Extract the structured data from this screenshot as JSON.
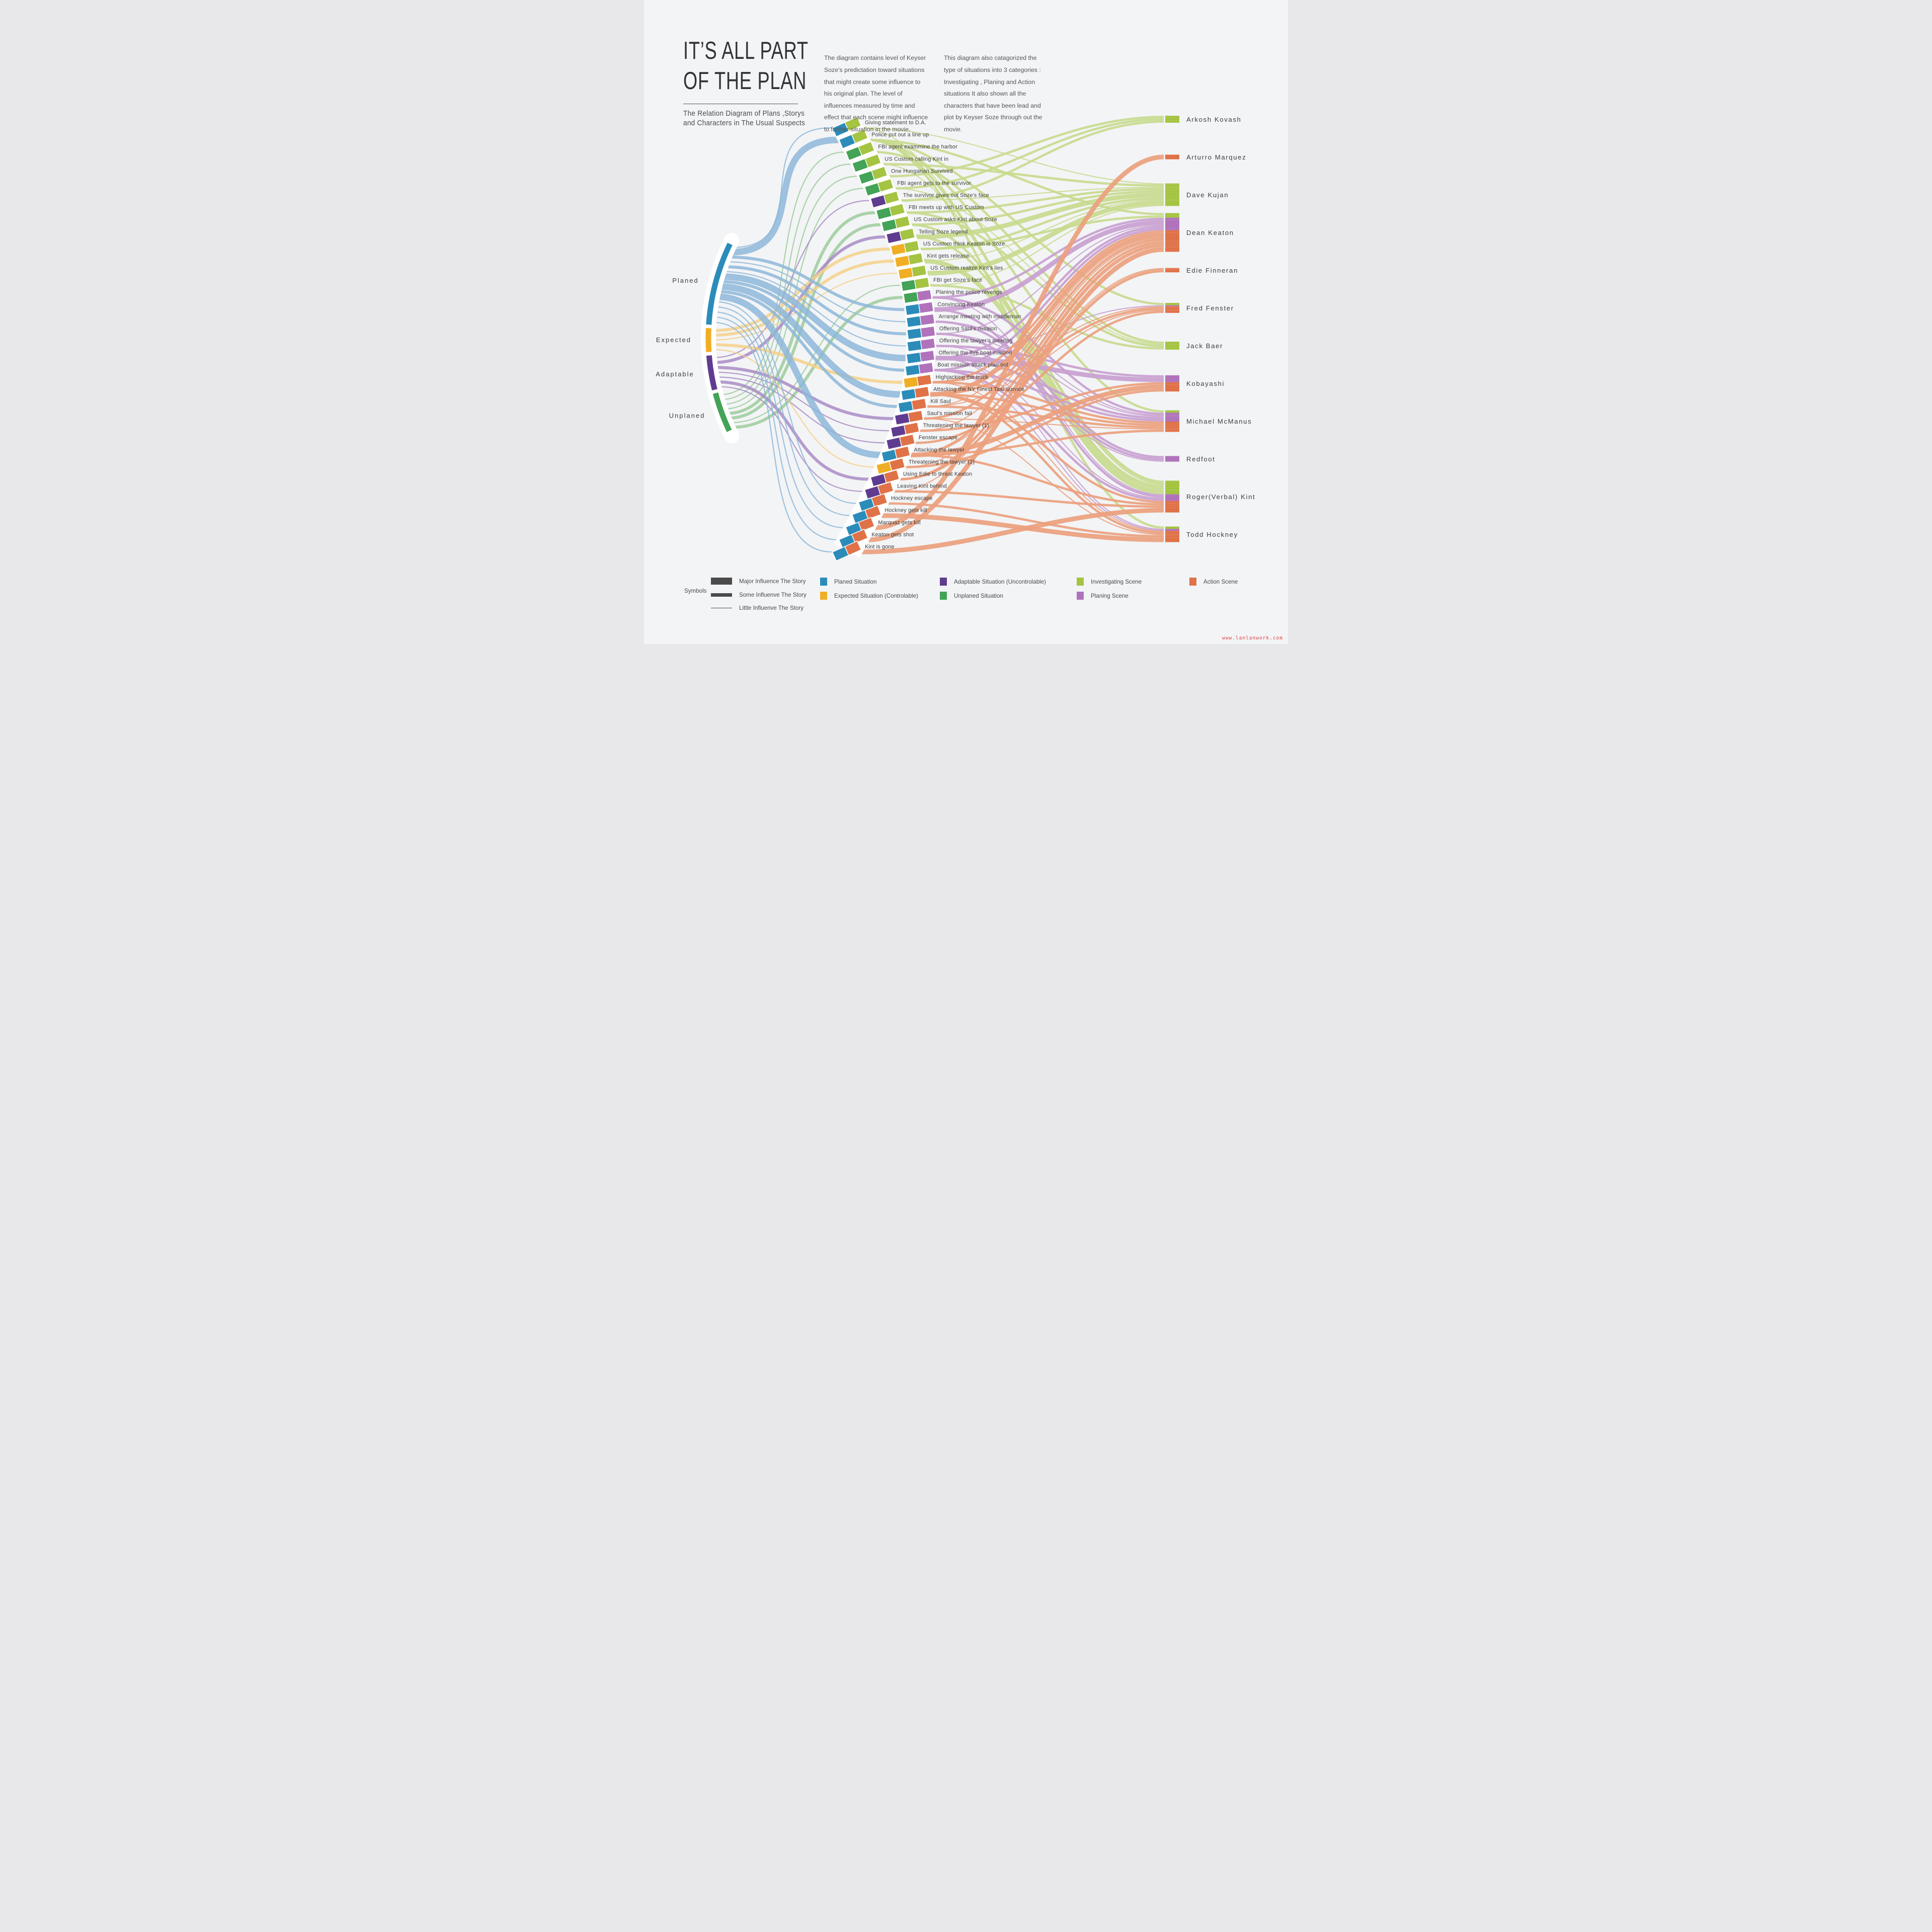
{
  "title": {
    "line1": "IT’S ALL PART",
    "line2": "OF THE PLAN",
    "subtitle_line1": "The Relation Diagram of Plans ,Storys",
    "subtitle_line2": "and Characters in The Usual Suspects"
  },
  "intro": {
    "para1": "The diagram contains level of Keyser Soze’s predictation toward situations that might create some influence to his original plan. The level of influences measured by time and effect that each scene might influence to further situation in the movie.",
    "para2": "This diagram also catagorized the type of situations into 3 categories : Investigating , Planing and Action situations It also shown all the characters that have been lead and plot by Keyser Soze through out the movie."
  },
  "colors": {
    "background": "#f3f4f6",
    "text": "#3d3d3d",
    "influence_bar": "#4b4b4b",
    "watermark_color": "#e04040",
    "planed": {
      "node": "#2b8cba",
      "flow": "#8db7d9"
    },
    "expected": {
      "node": "#f0ae24",
      "flow": "#f5d188"
    },
    "adaptable": {
      "node": "#5f3c90",
      "flow": "#a98bc5"
    },
    "unplaned": {
      "node": "#43a356",
      "flow": "#9ccb9b"
    },
    "investigating": {
      "node": "#a4c442",
      "flow": "#c8da8e"
    },
    "planing": {
      "node": "#b073bb",
      "flow": "#c9a0d0"
    },
    "action": {
      "node": "#e07248",
      "flow": "#eb9f7d"
    }
  },
  "situations": [
    {
      "id": "planed",
      "label": "Planed"
    },
    {
      "id": "expected",
      "label": "Expected"
    },
    {
      "id": "adaptable",
      "label": "Adaptable"
    },
    {
      "id": "unplaned",
      "label": "Unplaned"
    }
  ],
  "characters": [
    "Arkosh Kovash",
    "Arturro Marquez",
    "Dave Kujan",
    "Dean Keaton",
    "Edie Finneran",
    "Fred Fenster",
    "Jack Baer",
    "Kobayashi",
    "Michael McManus",
    "Redfoot",
    "Roger(Verbal) Kint",
    "Todd Hockney"
  ],
  "scenes": [
    {
      "label": "Giving statement to D.A.",
      "situation": "planed",
      "type": "investigating",
      "targets": [
        {
          "c": "Dave Kujan",
          "w": 1
        },
        {
          "c": "Roger(Verbal) Kint",
          "w": 1
        }
      ]
    },
    {
      "label": "Police put out a line up",
      "situation": "planed",
      "type": "investigating",
      "targets": [
        {
          "c": "Dean Keaton",
          "w": 2
        },
        {
          "c": "Fred Fenster",
          "w": 2
        },
        {
          "c": "Michael McManus",
          "w": 2
        },
        {
          "c": "Roger(Verbal) Kint",
          "w": 2
        },
        {
          "c": "Todd Hockney",
          "w": 2
        }
      ]
    },
    {
      "label": "FBI agent exammine the harbor",
      "situation": "unplaned",
      "type": "investigating",
      "targets": [
        {
          "c": "Jack Baer",
          "w": 2
        }
      ]
    },
    {
      "label": "US Custom calling Kint in",
      "situation": "unplaned",
      "type": "investigating",
      "targets": [
        {
          "c": "Dave Kujan",
          "w": 2
        },
        {
          "c": "Roger(Verbal) Kint",
          "w": 1
        }
      ]
    },
    {
      "label": "One Hungarian Survived",
      "situation": "unplaned",
      "type": "investigating",
      "targets": [
        {
          "c": "Arkosh Kovash",
          "w": 2
        }
      ]
    },
    {
      "label": "FBI agent gets to the survivor",
      "situation": "unplaned",
      "type": "investigating",
      "targets": [
        {
          "c": "Arkosh Kovash",
          "w": 2
        },
        {
          "c": "Jack Baer",
          "w": 1
        }
      ]
    },
    {
      "label": "The survivor gives out Soze’s face",
      "situation": "adaptable",
      "type": "investigating",
      "targets": [
        {
          "c": "Arkosh Kovash",
          "w": 2
        },
        {
          "c": "Dave Kujan",
          "w": 1
        }
      ]
    },
    {
      "label": "FBI meets up with US Custom",
      "situation": "unplaned",
      "type": "investigating",
      "targets": [
        {
          "c": "Dave Kujan",
          "w": 2
        },
        {
          "c": "Jack Baer",
          "w": 2
        }
      ]
    },
    {
      "label": "US Custom asks Kint about Soze",
      "situation": "unplaned",
      "type": "investigating",
      "targets": [
        {
          "c": "Dave Kujan",
          "w": 2
        },
        {
          "c": "Roger(Verbal) Kint",
          "w": 2
        }
      ]
    },
    {
      "label": "Telling Soze legend",
      "situation": "adaptable",
      "type": "investigating",
      "targets": [
        {
          "c": "Dave Kujan",
          "w": 3
        },
        {
          "c": "Roger(Verbal) Kint",
          "w": 2
        }
      ]
    },
    {
      "label": "US Custom think Keaton is Soze",
      "situation": "expected",
      "type": "investigating",
      "targets": [
        {
          "c": "Dave Kujan",
          "w": 2
        },
        {
          "c": "Dean Keaton",
          "w": 2
        }
      ]
    },
    {
      "label": "Kint gets release",
      "situation": "expected",
      "type": "investigating",
      "targets": [
        {
          "c": "Roger(Verbal) Kint",
          "w": 3
        },
        {
          "c": "Dave Kujan",
          "w": 1
        }
      ]
    },
    {
      "label": "US Custom realize Kint’s lies",
      "situation": "expected",
      "type": "investigating",
      "targets": [
        {
          "c": "Dave Kujan",
          "w": 3
        }
      ]
    },
    {
      "label": "FBI get Soze’s face",
      "situation": "unplaned",
      "type": "investigating",
      "targets": [
        {
          "c": "Jack Baer",
          "w": 2
        },
        {
          "c": "Dave Kujan",
          "w": 1
        }
      ]
    },
    {
      "label": "Planing the police revenge",
      "situation": "unplaned",
      "type": "planing",
      "targets": [
        {
          "c": "Dean Keaton",
          "w": 2
        },
        {
          "c": "Michael McManus",
          "w": 2
        },
        {
          "c": "Roger(Verbal) Kint",
          "w": 1
        }
      ]
    },
    {
      "label": "Convincing Keaton",
      "situation": "planed",
      "type": "planing",
      "targets": [
        {
          "c": "Dean Keaton",
          "w": 3
        },
        {
          "c": "Roger(Verbal) Kint",
          "w": 2
        }
      ]
    },
    {
      "label": "Arrange meeting with middleman",
      "situation": "planed",
      "type": "planing",
      "targets": [
        {
          "c": "Redfoot",
          "w": 2
        },
        {
          "c": "Michael McManus",
          "w": 1
        }
      ]
    },
    {
      "label": "Offering Saul’s mission",
      "situation": "planed",
      "type": "planing",
      "targets": [
        {
          "c": "Redfoot",
          "w": 2
        },
        {
          "c": "Dean Keaton",
          "w": 1
        },
        {
          "c": "Michael McManus",
          "w": 1
        }
      ]
    },
    {
      "label": "Offering the lawyer’s meeting",
      "situation": "planed",
      "type": "planing",
      "targets": [
        {
          "c": "Kobayashi",
          "w": 2
        },
        {
          "c": "Redfoot",
          "w": 1
        }
      ]
    },
    {
      "label": "Offering the five boat mission",
      "situation": "planed",
      "type": "planing",
      "targets": [
        {
          "c": "Kobayashi",
          "w": 3
        },
        {
          "c": "Dean Keaton",
          "w": 2
        },
        {
          "c": "Michael McManus",
          "w": 2
        },
        {
          "c": "Fred Fenster",
          "w": 1
        },
        {
          "c": "Todd Hockney",
          "w": 1
        },
        {
          "c": "Roger(Verbal) Kint",
          "w": 1
        }
      ]
    },
    {
      "label": "Boat mission attack plan out",
      "situation": "planed",
      "type": "planing",
      "targets": [
        {
          "c": "Dean Keaton",
          "w": 2
        },
        {
          "c": "Michael McManus",
          "w": 2
        },
        {
          "c": "Roger(Verbal) Kint",
          "w": 2
        },
        {
          "c": "Todd Hockney",
          "w": 1
        }
      ]
    },
    {
      "label": "Highjacking the truck",
      "situation": "expected",
      "type": "action",
      "targets": [
        {
          "c": "Dean Keaton",
          "w": 2
        },
        {
          "c": "Michael McManus",
          "w": 2
        },
        {
          "c": "Fred Fenster",
          "w": 1
        },
        {
          "c": "Todd Hockney",
          "w": 1
        }
      ]
    },
    {
      "label": "Attacking the NY Finest Taxi Survice",
      "situation": "planed",
      "type": "action",
      "targets": [
        {
          "c": "Dean Keaton",
          "w": 3
        },
        {
          "c": "Michael McManus",
          "w": 2
        },
        {
          "c": "Fred Fenster",
          "w": 2
        },
        {
          "c": "Todd Hockney",
          "w": 2
        },
        {
          "c": "Roger(Verbal) Kint",
          "w": 2
        }
      ]
    },
    {
      "label": "Kill Saul",
      "situation": "planed",
      "type": "action",
      "targets": [
        {
          "c": "Michael McManus",
          "w": 2
        },
        {
          "c": "Fred Fenster",
          "w": 1
        },
        {
          "c": "Dean Keaton",
          "w": 1
        }
      ]
    },
    {
      "label": "Saul’s mission fail",
      "situation": "adaptable",
      "type": "action",
      "targets": [
        {
          "c": "Dean Keaton",
          "w": 2
        },
        {
          "c": "Michael McManus",
          "w": 1
        },
        {
          "c": "Todd Hockney",
          "w": 1
        }
      ]
    },
    {
      "label": "Threatening the lawyer (1)",
      "situation": "adaptable",
      "type": "action",
      "targets": [
        {
          "c": "Kobayashi",
          "w": 2
        },
        {
          "c": "Dean Keaton",
          "w": 1
        }
      ]
    },
    {
      "label": "Fenster escape",
      "situation": "adaptable",
      "type": "action",
      "targets": [
        {
          "c": "Fred Fenster",
          "w": 2
        }
      ]
    },
    {
      "label": "Attacking the lawyer",
      "situation": "planed",
      "type": "action",
      "targets": [
        {
          "c": "Kobayashi",
          "w": 3
        },
        {
          "c": "Dean Keaton",
          "w": 2
        },
        {
          "c": "Michael McManus",
          "w": 2
        },
        {
          "c": "Roger(Verbal) Kint",
          "w": 2
        },
        {
          "c": "Edie Finneran",
          "w": 1
        }
      ]
    },
    {
      "label": "Threatening the lawyer (2)",
      "situation": "expected",
      "type": "action",
      "targets": [
        {
          "c": "Kobayashi",
          "w": 2
        },
        {
          "c": "Edie Finneran",
          "w": 1
        }
      ]
    },
    {
      "label": "Using Edie to threat Keaton",
      "situation": "adaptable",
      "type": "action",
      "targets": [
        {
          "c": "Edie Finneran",
          "w": 2
        },
        {
          "c": "Dean Keaton",
          "w": 2
        }
      ]
    },
    {
      "label": "Leaving Kint behind",
      "situation": "adaptable",
      "type": "action",
      "targets": [
        {
          "c": "Roger(Verbal) Kint",
          "w": 2
        },
        {
          "c": "Dean Keaton",
          "w": 1
        }
      ]
    },
    {
      "label": "Hockney escape",
      "situation": "planed",
      "type": "action",
      "targets": [
        {
          "c": "Todd Hockney",
          "w": 2
        }
      ]
    },
    {
      "label": "Hockney gets kill",
      "situation": "planed",
      "type": "action",
      "targets": [
        {
          "c": "Todd Hockney",
          "w": 3
        }
      ]
    },
    {
      "label": "Marquaz gets kill",
      "situation": "planed",
      "type": "action",
      "targets": [
        {
          "c": "Arturro Marquez",
          "w": 3
        }
      ]
    },
    {
      "label": "Keaton gets shot",
      "situation": "planed",
      "type": "action",
      "targets": [
        {
          "c": "Dean Keaton",
          "w": 3
        }
      ]
    },
    {
      "label": "Kint is gone",
      "situation": "planed",
      "type": "action",
      "targets": [
        {
          "c": "Roger(Verbal) Kint",
          "w": 3
        }
      ]
    }
  ],
  "legend": {
    "symbols_title": "Symbols",
    "influence": [
      {
        "label": "Major Influence The Story",
        "size": "major"
      },
      {
        "label": "Some Influenve The Story",
        "size": "some"
      },
      {
        "label": "Little Influenve  The Story",
        "size": "little"
      }
    ],
    "situation_items": [
      {
        "color_path": "colors.planed.node",
        "label": "Planed Situation"
      },
      {
        "color_path": "colors.expected.node",
        "label": "Expected Situation (Controlable)"
      },
      {
        "color_path": "colors.adaptable.node",
        "label": "Adaptable Situation (Uncontrolable)"
      },
      {
        "color_path": "colors.unplaned.node",
        "label": "Unplaned Situation"
      }
    ],
    "scene_type_items": [
      {
        "color_path": "colors.investigating.node",
        "label": "Investigating Scene"
      },
      {
        "color_path": "colors.planing.node",
        "label": "Planing Scene"
      },
      {
        "color_path": "colors.action.node",
        "label": "Action Scene"
      }
    ]
  },
  "watermark": "www.lanlanwork.com"
}
